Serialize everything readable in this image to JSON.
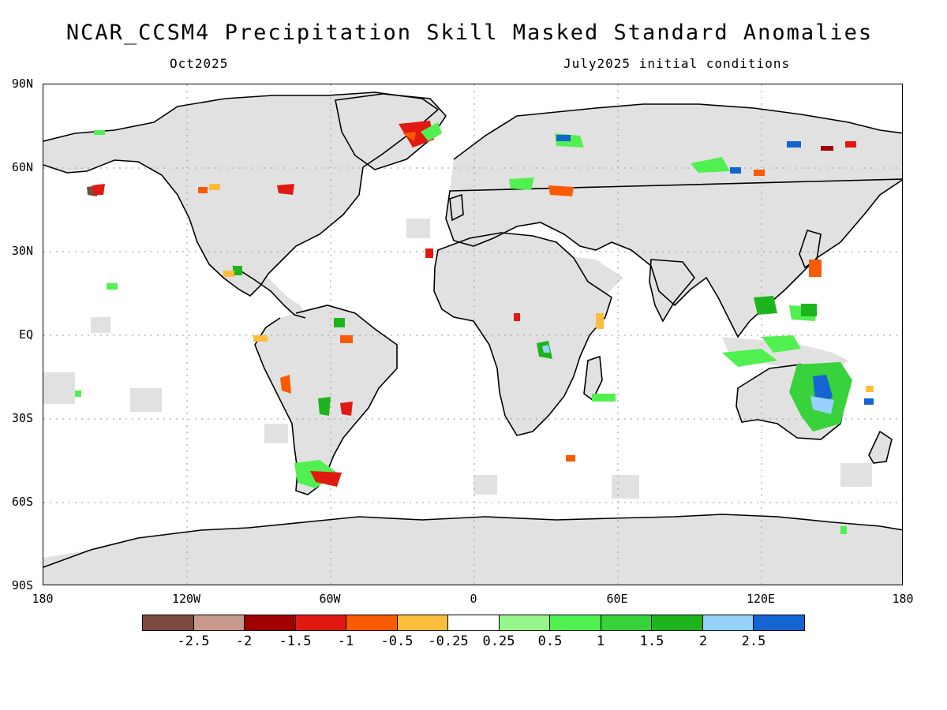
{
  "title": "NCAR_CCSM4 Precipitation Skill Masked Standard Anomalies",
  "subtitle_left": "Oct2025",
  "subtitle_right": "July2025 initial conditions",
  "map": {
    "land_color": "#e1e1e1",
    "ocean_color": "#ffffff",
    "latitude_labels": [
      "90N",
      "60N",
      "30N",
      "EQ",
      "30S",
      "60S",
      "90S"
    ],
    "longitude_labels": [
      "180",
      "120W",
      "60W",
      "0",
      "60E",
      "120E",
      "180"
    ]
  },
  "colorbar": {
    "colors": [
      "#7a4a40",
      "#c89a8e",
      "#a00000",
      "#e01a10",
      "#fa5a00",
      "#fbbd3c",
      "#ffffff",
      "#96f68c",
      "#50f050",
      "#37d23c",
      "#1eb41e",
      "#96d2fa",
      "#1464d2"
    ],
    "labels": [
      "-2.5",
      "-2",
      "-1.5",
      "-1",
      "-0.5",
      "-0.25",
      "0.25",
      "0.5",
      "1",
      "1.5",
      "2",
      "2.5"
    ]
  }
}
